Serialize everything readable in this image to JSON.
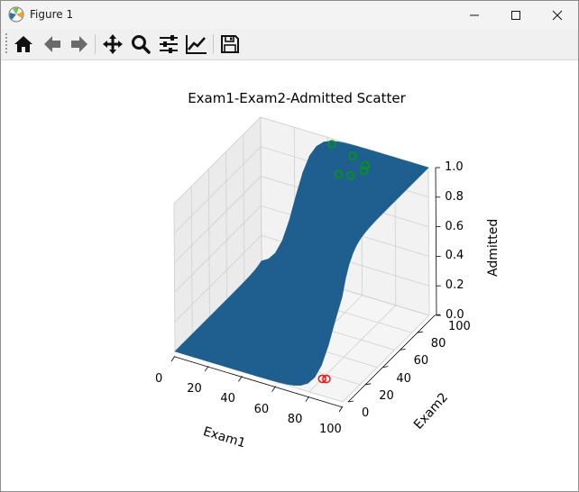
{
  "window": {
    "title": "Figure 1",
    "controls": [
      "minimize",
      "maximize",
      "close"
    ]
  },
  "toolbar": {
    "tools": [
      {
        "name": "home",
        "icon": "home-icon"
      },
      {
        "name": "back",
        "icon": "arrow-left-icon"
      },
      {
        "name": "forward",
        "icon": "arrow-right-icon"
      },
      {
        "name": "pan",
        "icon": "move-icon"
      },
      {
        "name": "zoom",
        "icon": "magnifier-icon"
      },
      {
        "name": "configure-subplots",
        "icon": "sliders-icon"
      },
      {
        "name": "edit-axes",
        "icon": "line-chart-icon"
      },
      {
        "name": "save",
        "icon": "floppy-icon"
      }
    ]
  },
  "chart_data": {
    "type": "surface+scatter",
    "title": "Exam1-Exam2-Admitted Scatter",
    "xlabel": "Exam1",
    "ylabel": "Exam2",
    "zlabel": "Admitted",
    "x_ticks": [
      "0",
      "20",
      "40",
      "60",
      "80",
      "100"
    ],
    "y_ticks": [
      "0",
      "20",
      "40",
      "60",
      "80",
      "100"
    ],
    "z_ticks": [
      "0.0",
      "0.2",
      "0.4",
      "0.6",
      "0.8",
      "1.0"
    ],
    "xlim": [
      0,
      100
    ],
    "ylim": [
      0,
      100
    ],
    "zlim": [
      0,
      1
    ],
    "grid": true,
    "surface_color": "#1f5f8f",
    "series": [
      {
        "color": "#ff0000",
        "points": [
          [
            80,
            15,
            0
          ],
          [
            82,
            16,
            0
          ]
        ]
      },
      {
        "color": "#00a000",
        "points": [
          [
            45,
            95,
            1
          ],
          [
            60,
            90,
            1
          ],
          [
            70,
            85,
            1
          ],
          [
            72,
            80,
            1
          ],
          [
            68,
            72,
            1
          ],
          [
            62,
            70,
            1
          ]
        ]
      }
    ]
  }
}
